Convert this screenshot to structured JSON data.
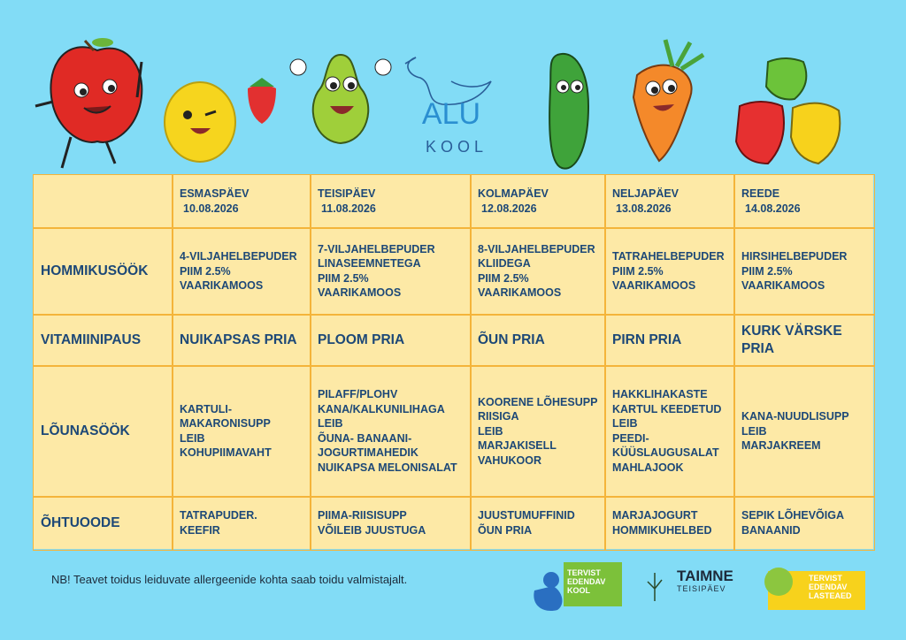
{
  "logo": {
    "name": "ALU",
    "sub": "KOOL"
  },
  "table": {
    "days": [
      {
        "day": "ESMASPÄEV",
        "date": "10.08.2026"
      },
      {
        "day": "TEISIPÄEV",
        "date": "11.08.2026"
      },
      {
        "day": "KOLMAPÄEV",
        "date": "12.08.2026"
      },
      {
        "day": "NELJAPÄEV",
        "date": "13.08.2026"
      },
      {
        "day": "REEDE",
        "date": "14.08.2026"
      }
    ],
    "rows": [
      {
        "label": "HOMMIKUSÖÖK",
        "cells": [
          [
            "4-VILJAHELBEPUDER",
            "PIIM 2.5%",
            "VAARIKAMOOS"
          ],
          [
            "7-VILJAHELBEPUDER",
            "LINASEEMNETEGA",
            "PIIM 2.5%",
            "VAARIKAMOOS"
          ],
          [
            "8-VILJAHELBEPUDER",
            "KLIIDEGA",
            "PIIM 2.5%",
            "VAARIKAMOOS"
          ],
          [
            "TATRAHELBEPUDER",
            "PIIM 2.5%",
            "VAARIKAMOOS"
          ],
          [
            "HIRSIHELBEPUDER",
            "PIIM 2.5%",
            "VAARIKAMOOS"
          ]
        ]
      },
      {
        "label": "VITAMIINIPAUS",
        "cells": [
          [
            "NUIKAPSAS PRIA"
          ],
          [
            "PLOOM PRIA"
          ],
          [
            "ÕUN PRIA"
          ],
          [
            "PIRN PRIA"
          ],
          [
            "KURK VÄRSKE",
            "PRIA"
          ]
        ]
      },
      {
        "label": "LÕUNASÖÖK",
        "cells": [
          [
            "KARTULI-",
            "MAKARONISUPP",
            "LEIB",
            "KOHUPIIMAVAHT"
          ],
          [
            "PILAFF/PLOHV",
            "KANA/KALKUNILIHAGA",
            "LEIB",
            "ÕUNA- BANAANI-",
            "JOGURTIMAHEDIK",
            "NUIKAPSA MELONISALAT"
          ],
          [
            "KOORENE LÕHESUPP",
            "RIISIGA",
            "LEIB",
            "MARJAKISELL",
            "VAHUKOOR"
          ],
          [
            "HAKKLIHAKASTE",
            "KARTUL KEEDETUD",
            "LEIB",
            "PEEDI-",
            "KÜÜSLAUGUSALAT",
            "MAHLAJOOK"
          ],
          [
            "KANA-NUUDLISUPP",
            "LEIB",
            "MARJAKREEM"
          ]
        ]
      },
      {
        "label": "ÕHTUOODE",
        "cells": [
          [
            "TATRAPUDER.",
            "KEEFIR"
          ],
          [
            "PIIMA-RIISISUPP",
            "VÕILEIB JUUSTUGA"
          ],
          [
            "JUUSTUMUFFINID",
            "ÕUN PRIA"
          ],
          [
            "MARJAJOGURT",
            "HOMMIKUHELBED"
          ],
          [
            "SEPIK LÕHEVÕIGA",
            "BANAANID"
          ]
        ]
      }
    ]
  },
  "footnote": "NB! Teavet toidus leiduvate allergeenide kohta saab toidu valmistajalt.",
  "badges": {
    "school": [
      "TERVIST",
      "EDENDAV",
      "KOOL"
    ],
    "taimne": {
      "title": "TAIMNE",
      "sub": "TEISIPÄEV"
    },
    "kindergarten": [
      "TERVIST",
      "EDENDAV",
      "LASTEAED"
    ]
  }
}
